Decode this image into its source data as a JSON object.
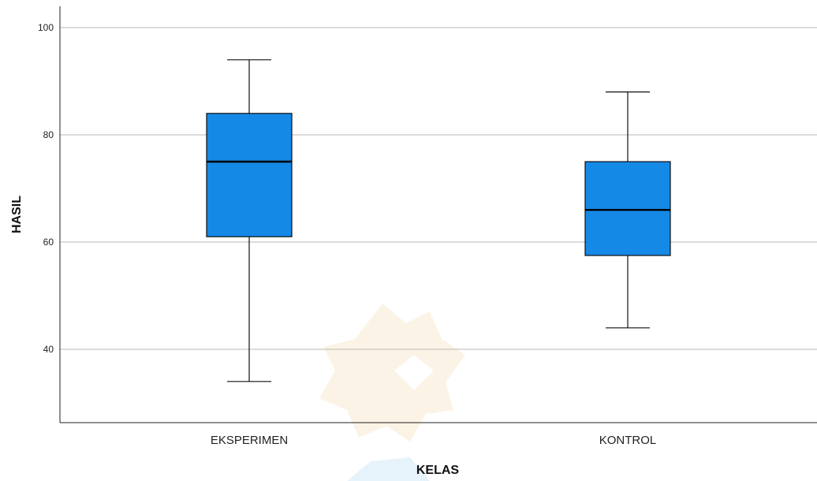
{
  "chart_data": {
    "type": "box",
    "xlabel": "KELAS",
    "ylabel": "HASIL",
    "ylim": [
      26,
      104
    ],
    "yticks": [
      40,
      60,
      80,
      100
    ],
    "grid": true,
    "box_color": "#1589e6",
    "categories": [
      "EKSPERIMEN",
      "KONTROL"
    ],
    "boxes": [
      {
        "category": "EKSPERIMEN",
        "min": 34,
        "q1": 61,
        "median": 75,
        "q3": 84,
        "max": 94
      },
      {
        "category": "KONTROL",
        "min": 44,
        "q1": 57.5,
        "median": 66,
        "q3": 75,
        "max": 88
      }
    ]
  }
}
